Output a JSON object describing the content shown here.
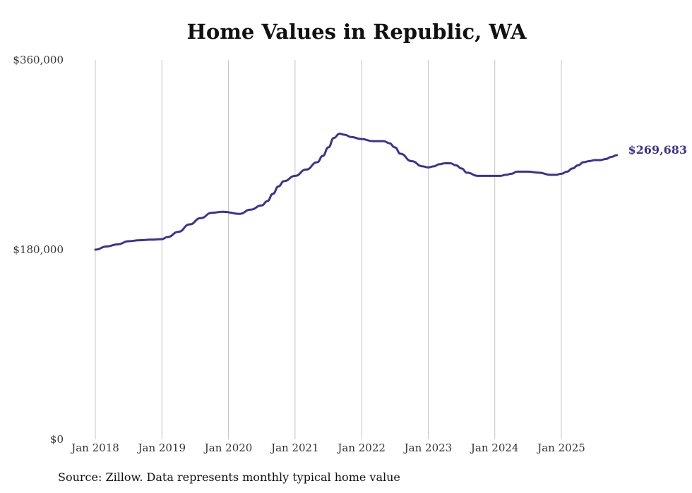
{
  "chart_data": {
    "type": "line",
    "title": "Home Values in Republic, WA",
    "xlabel": "",
    "ylabel": "",
    "ylim": [
      0,
      360000
    ],
    "y_ticks": [
      {
        "value": 0,
        "label": "$0"
      },
      {
        "value": 180000,
        "label": "$180,000"
      },
      {
        "value": 360000,
        "label": "$360,000"
      }
    ],
    "x_ticks": [
      {
        "value": 2018.0,
        "label": "Jan 2018"
      },
      {
        "value": 2019.0,
        "label": "Jan 2019"
      },
      {
        "value": 2020.0,
        "label": "Jan 2020"
      },
      {
        "value": 2021.0,
        "label": "Jan 2021"
      },
      {
        "value": 2022.0,
        "label": "Jan 2022"
      },
      {
        "value": 2023.0,
        "label": "Jan 2023"
      },
      {
        "value": 2024.0,
        "label": "Jan 2024"
      },
      {
        "value": 2025.0,
        "label": "Jan 2025"
      }
    ],
    "xlim": [
      2018.0,
      2025.83
    ],
    "grid": "vertical",
    "series": [
      {
        "name": "Typical home value",
        "color": "#3d3290",
        "end_label": "$269,683",
        "x": [
          2018.0,
          2018.167,
          2018.333,
          2018.5,
          2018.667,
          2018.833,
          2019.0,
          2019.083,
          2019.25,
          2019.417,
          2019.583,
          2019.75,
          2019.917,
          2020.167,
          2020.333,
          2020.5,
          2020.583,
          2020.667,
          2020.75,
          2020.833,
          2021.0,
          2021.167,
          2021.333,
          2021.417,
          2021.5,
          2021.583,
          2021.667,
          2021.75,
          2021.833,
          2022.0,
          2022.167,
          2022.25,
          2022.333,
          2022.417,
          2022.5,
          2022.583,
          2022.75,
          2022.917,
          2023.0,
          2023.083,
          2023.167,
          2023.25,
          2023.333,
          2023.417,
          2023.5,
          2023.583,
          2023.75,
          2023.917,
          2024.083,
          2024.167,
          2024.25,
          2024.333,
          2024.417,
          2024.5,
          2024.667,
          2024.833,
          2024.917,
          2025.0,
          2025.083,
          2025.167,
          2025.25,
          2025.333,
          2025.417,
          2025.5,
          2025.583,
          2025.667,
          2025.75,
          2025.833
        ],
        "values": [
          180000,
          183000,
          185000,
          188000,
          189000,
          189500,
          190000,
          192000,
          197000,
          204000,
          210000,
          215000,
          216000,
          214000,
          218000,
          222000,
          226000,
          233000,
          240000,
          245000,
          250000,
          256000,
          263000,
          269000,
          277000,
          286000,
          290000,
          289000,
          287000,
          285000,
          283000,
          283000,
          283000,
          281000,
          277000,
          271000,
          264000,
          259000,
          258000,
          259000,
          261000,
          262000,
          262000,
          260000,
          257000,
          253000,
          250000,
          250000,
          250000,
          251000,
          252000,
          254000,
          254000,
          254000,
          253000,
          251000,
          251000,
          252000,
          254000,
          257000,
          260000,
          263000,
          264000,
          265000,
          265000,
          266000,
          268000,
          269683
        ]
      }
    ]
  },
  "source_note": "Source: Zillow. Data represents monthly typical home value"
}
